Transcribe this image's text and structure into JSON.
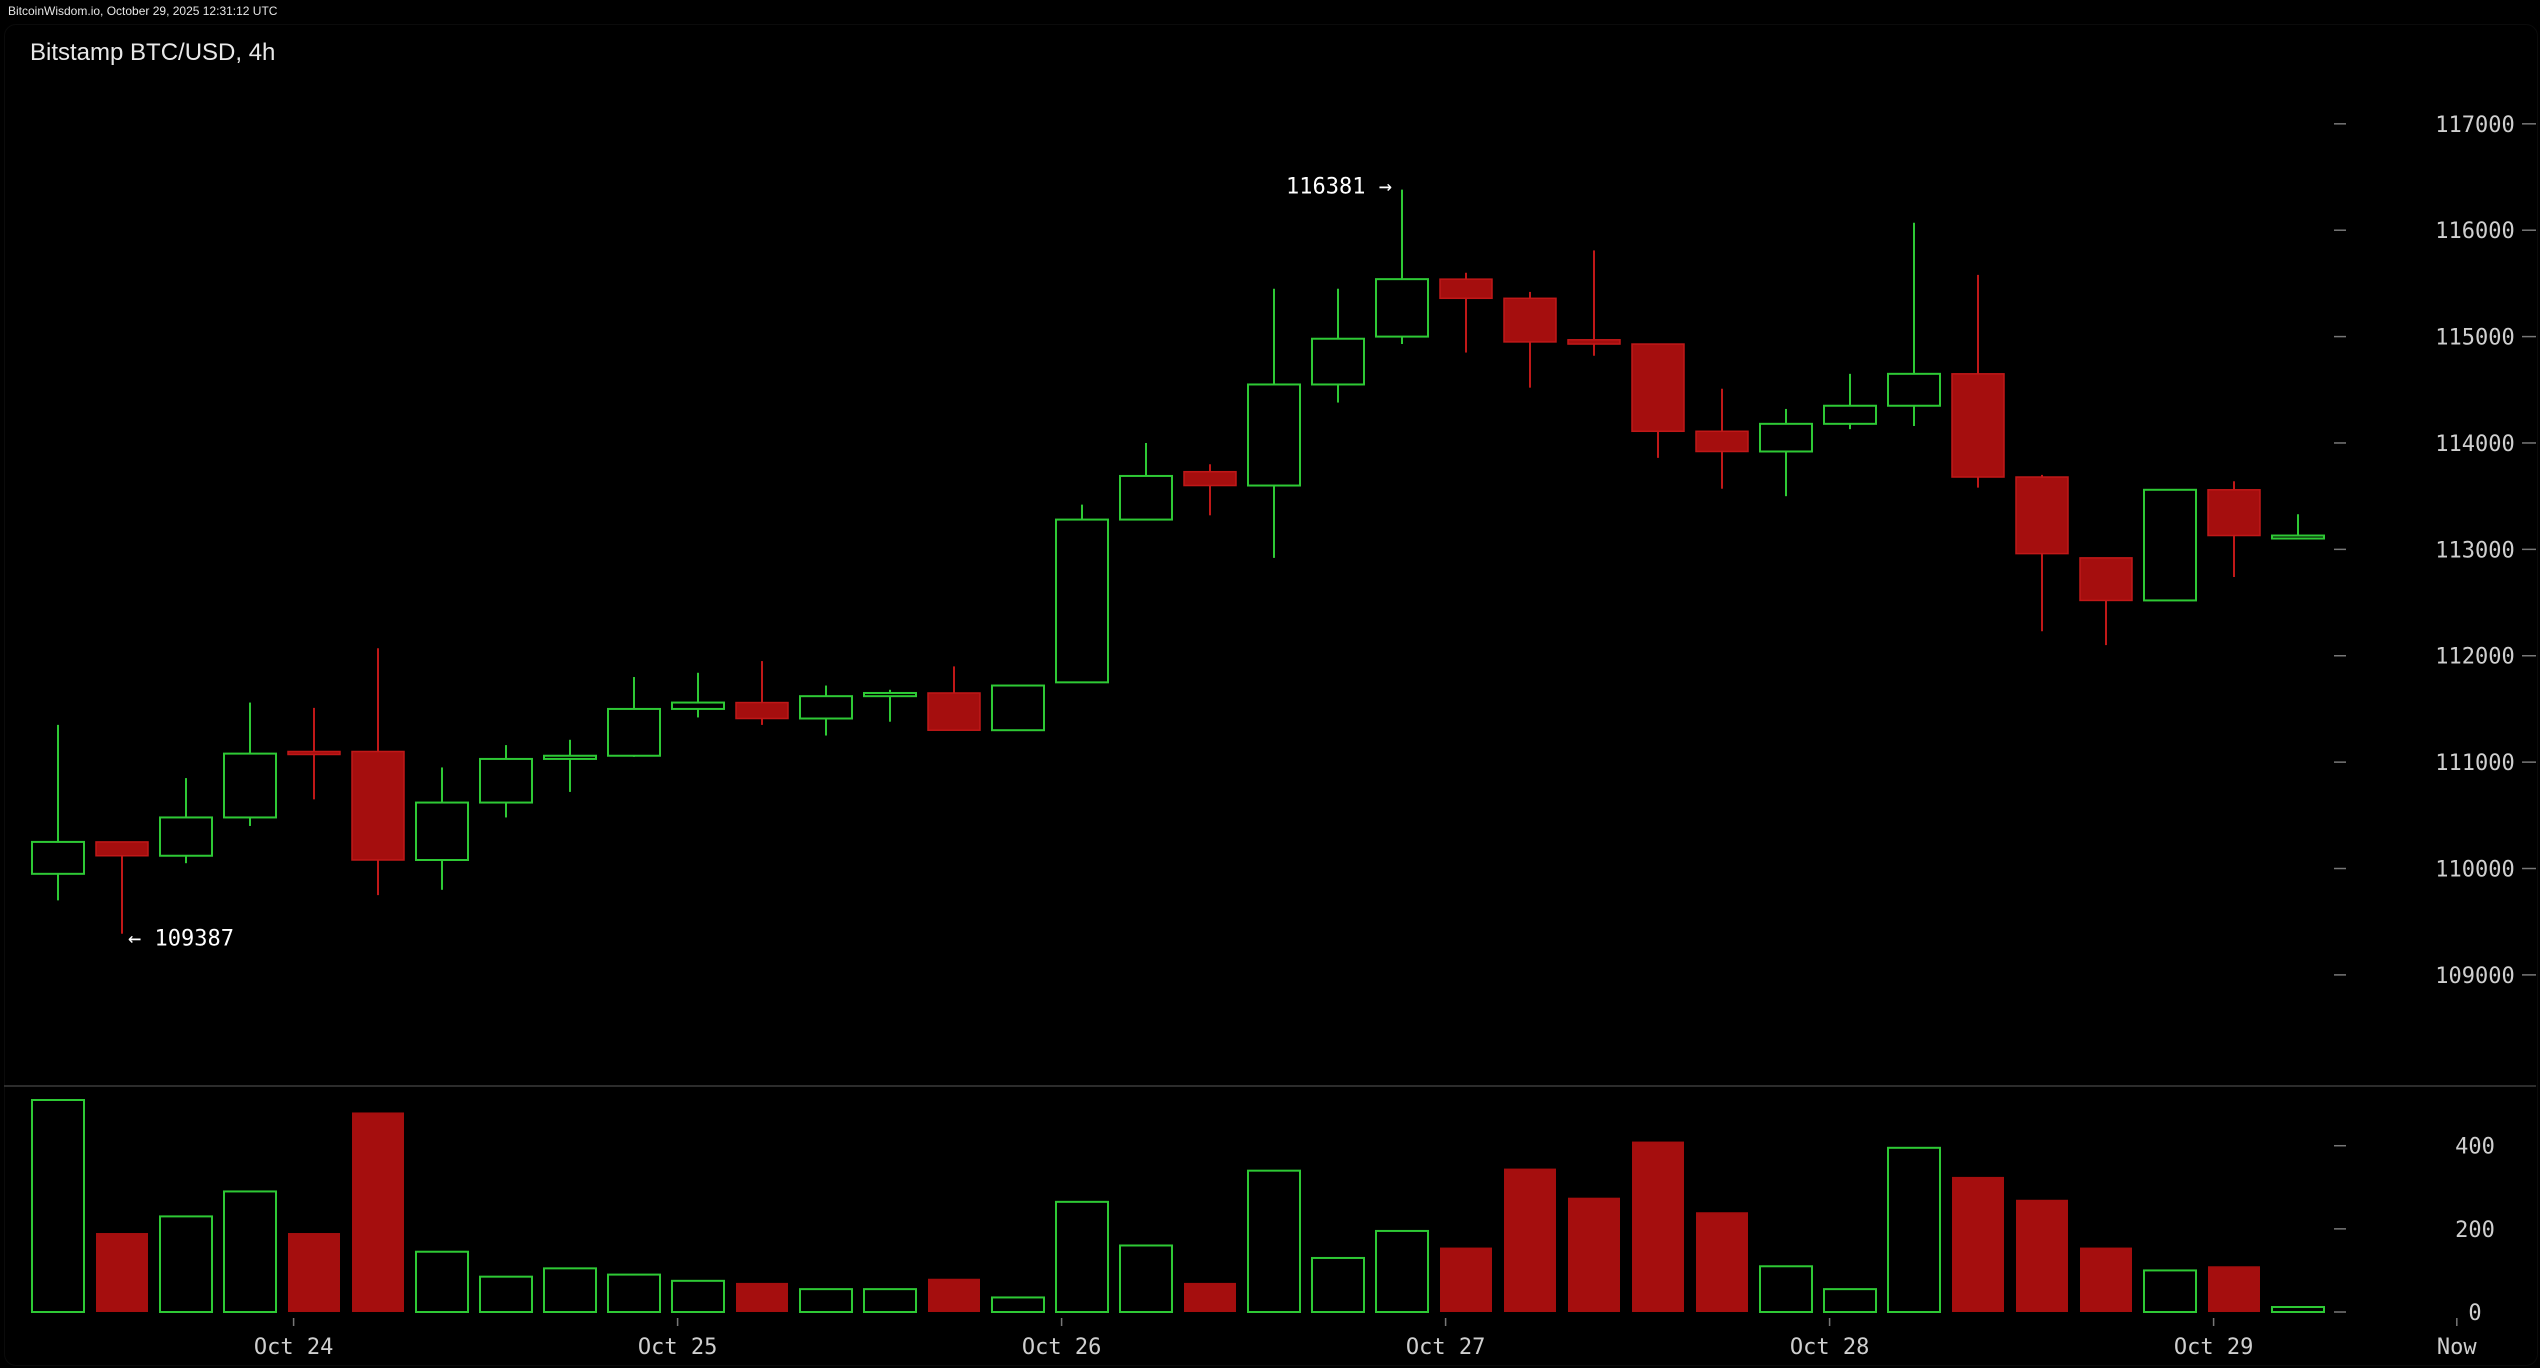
{
  "header": {
    "credit": "BitcoinWisdom.io, October 29, 2025 12:31:12 UTC"
  },
  "chart_data": {
    "type": "candlestick",
    "title": "Bitstamp BTC/USD, 4h",
    "y_ticks": [
      109000,
      110000,
      111000,
      112000,
      113000,
      114000,
      115000,
      116000,
      117000
    ],
    "y_tick_labels": [
      "109000",
      "110000",
      "111000",
      "112000",
      "113000",
      "114000",
      "115000",
      "116000",
      "117000"
    ],
    "ylim": [
      108200,
      117600
    ],
    "volume_ticks": [
      0,
      200,
      400
    ],
    "volume_tick_labels": [
      "0",
      "200",
      "400"
    ],
    "volume_ylim": [
      0,
      510
    ],
    "x_labels": [
      {
        "label": "Oct 24",
        "index": 3.4
      },
      {
        "label": "Oct 25",
        "index": 9.4
      },
      {
        "label": "Oct 26",
        "index": 15.4
      },
      {
        "label": "Oct 27",
        "index": 21.4
      },
      {
        "label": "Oct 28",
        "index": 27.4
      },
      {
        "label": "Oct 29",
        "index": 33.4
      },
      {
        "label": "Now",
        "index": 37.2
      }
    ],
    "annotations": [
      {
        "text": "116381 →",
        "candle": 21,
        "value": 116381,
        "side": "left"
      },
      {
        "text": "← 109387",
        "candle": 1,
        "value": 109387,
        "side": "right"
      }
    ],
    "up_color": "#2ec935",
    "down_color": "#a50e0e",
    "candles": [
      {
        "o": 109950,
        "h": 111350,
        "l": 109700,
        "c": 110250,
        "v": 510
      },
      {
        "o": 110250,
        "h": 110250,
        "l": 109387,
        "c": 110120,
        "v": 190
      },
      {
        "o": 110120,
        "h": 110850,
        "l": 110050,
        "c": 110480,
        "v": 230
      },
      {
        "o": 110480,
        "h": 111560,
        "l": 110400,
        "c": 111080,
        "v": 290
      },
      {
        "o": 111100,
        "h": 111510,
        "l": 110650,
        "c": 111080,
        "v": 190
      },
      {
        "o": 111100,
        "h": 112070,
        "l": 109750,
        "c": 110080,
        "v": 480
      },
      {
        "o": 110080,
        "h": 110950,
        "l": 109800,
        "c": 110620,
        "v": 145
      },
      {
        "o": 110620,
        "h": 111160,
        "l": 110480,
        "c": 111030,
        "v": 85
      },
      {
        "o": 111030,
        "h": 111210,
        "l": 110720,
        "c": 111060,
        "v": 105
      },
      {
        "o": 111060,
        "h": 111800,
        "l": 111050,
        "c": 111500,
        "v": 90
      },
      {
        "o": 111500,
        "h": 111840,
        "l": 111420,
        "c": 111560,
        "v": 75
      },
      {
        "o": 111560,
        "h": 111950,
        "l": 111350,
        "c": 111410,
        "v": 70
      },
      {
        "o": 111410,
        "h": 111720,
        "l": 111250,
        "c": 111620,
        "v": 55
      },
      {
        "o": 111620,
        "h": 111680,
        "l": 111380,
        "c": 111650,
        "v": 55
      },
      {
        "o": 111650,
        "h": 111900,
        "l": 111300,
        "c": 111300,
        "v": 80
      },
      {
        "o": 111300,
        "h": 111720,
        "l": 111300,
        "c": 111720,
        "v": 35
      },
      {
        "o": 111750,
        "h": 113420,
        "l": 111750,
        "c": 113280,
        "v": 265
      },
      {
        "o": 113280,
        "h": 114000,
        "l": 113280,
        "c": 113690,
        "v": 160
      },
      {
        "o": 113730,
        "h": 113800,
        "l": 113320,
        "c": 113600,
        "v": 70
      },
      {
        "o": 113600,
        "h": 115450,
        "l": 112920,
        "c": 114550,
        "v": 340
      },
      {
        "o": 114550,
        "h": 115450,
        "l": 114380,
        "c": 114980,
        "v": 130
      },
      {
        "o": 115000,
        "h": 116381,
        "l": 114930,
        "c": 115540,
        "v": 195
      },
      {
        "o": 115540,
        "h": 115600,
        "l": 114850,
        "c": 115360,
        "v": 155
      },
      {
        "o": 115360,
        "h": 115420,
        "l": 114520,
        "c": 114950,
        "v": 345
      },
      {
        "o": 114970,
        "h": 115810,
        "l": 114820,
        "c": 114930,
        "v": 275
      },
      {
        "o": 114930,
        "h": 114930,
        "l": 113860,
        "c": 114110,
        "v": 410
      },
      {
        "o": 114110,
        "h": 114510,
        "l": 113570,
        "c": 113920,
        "v": 240
      },
      {
        "o": 113920,
        "h": 114320,
        "l": 113500,
        "c": 114180,
        "v": 110
      },
      {
        "o": 114180,
        "h": 114650,
        "l": 114130,
        "c": 114350,
        "v": 55
      },
      {
        "o": 114350,
        "h": 116070,
        "l": 114160,
        "c": 114650,
        "v": 395
      },
      {
        "o": 114650,
        "h": 115580,
        "l": 113580,
        "c": 113680,
        "v": 325
      },
      {
        "o": 113680,
        "h": 113700,
        "l": 112230,
        "c": 112960,
        "v": 270
      },
      {
        "o": 112920,
        "h": 112920,
        "l": 112100,
        "c": 112520,
        "v": 155
      },
      {
        "o": 112520,
        "h": 113560,
        "l": 112520,
        "c": 113560,
        "v": 100
      },
      {
        "o": 113560,
        "h": 113640,
        "l": 112740,
        "c": 113130,
        "v": 110
      },
      {
        "o": 113130,
        "h": 113330,
        "l": 113100,
        "c": 113130,
        "v": 12
      }
    ]
  }
}
